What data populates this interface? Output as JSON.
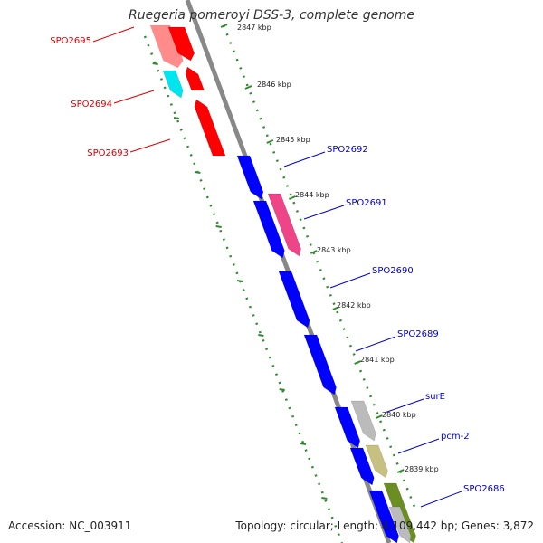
{
  "title": "Ruegeria pomeroyi DSS-3, complete genome",
  "footer": {
    "accession": "Accession: NC_003911",
    "summary": "Topology: circular; Length: 4,109,442 bp; Genes: 3,872"
  },
  "colors": {
    "backbone": "#888888",
    "tick": "#2e8b2e",
    "reverse_label": "#dd0000",
    "forward_label": "#0000cc"
  },
  "kbp_ticks": [
    "2847 kbp",
    "2846 kbp",
    "2845 kbp",
    "2844 kbp",
    "2843 kbp",
    "2842 kbp",
    "2841 kbp",
    "2840 kbp",
    "2839 kbp"
  ],
  "genes": [
    {
      "label": "SPO2695",
      "strand": "reverse",
      "color": "#ff0000"
    },
    {
      "label": "SPO2694",
      "strand": "reverse",
      "color": "#00e5ee"
    },
    {
      "label": "SPO2693",
      "strand": "reverse",
      "color": "#ff0000"
    },
    {
      "label": "SPO2692",
      "strand": "forward",
      "color": "#0000ff"
    },
    {
      "label": "SPO2691",
      "strand": "forward",
      "color": "#0000ff"
    },
    {
      "label": "SPO2690",
      "strand": "forward",
      "color": "#0000ff"
    },
    {
      "label": "SPO2689",
      "strand": "forward",
      "color": "#0000ff"
    },
    {
      "label": "surE",
      "strand": "forward",
      "color": "#0000ff"
    },
    {
      "label": "pcm-2",
      "strand": "forward",
      "color": "#0000ff"
    },
    {
      "label": "SPO2686",
      "strand": "forward",
      "color": "#0000ff"
    }
  ],
  "feature_colors": [
    "#ee4488",
    "#bbbbbb",
    "#c8c080",
    "#6b8e23"
  ]
}
